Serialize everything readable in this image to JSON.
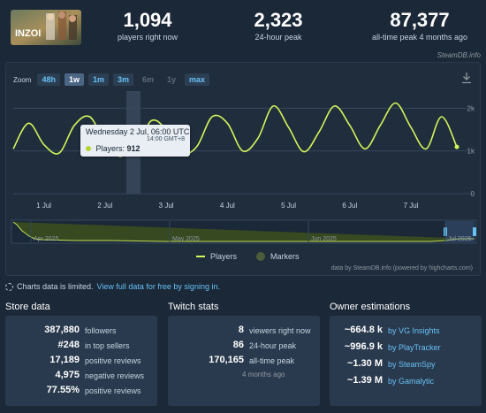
{
  "header": {
    "game_logo_text": "INZOI",
    "stats": [
      {
        "value": "1,094",
        "label": "players right now"
      },
      {
        "value": "2,323",
        "label": "24-hour peak"
      },
      {
        "value": "87,377",
        "label": "all-time peak 4 months ago"
      }
    ],
    "credit": "SteamDB.info"
  },
  "chart": {
    "zoom_label": "Zoom",
    "zoom_buttons": [
      "48h",
      "1w",
      "1m",
      "3m",
      "6m",
      "1y",
      "max"
    ],
    "active_zoom": "1w",
    "disabled_zoom": [
      "6m",
      "1y"
    ],
    "y_ticks": [
      "2k",
      "1k",
      "0"
    ],
    "x_ticks": [
      "1 Jul",
      "2 Jul",
      "3 Jul",
      "4 Jul",
      "5 Jul",
      "6 Jul",
      "7 Jul"
    ],
    "navigator_ticks": [
      "Apr 2025",
      "May 2025",
      "Jun 2025",
      "Jul 2025"
    ],
    "tooltip": {
      "title": "Wednesday 2 Jul, 06:00 UTC",
      "subtitle": "14:00 GMT+8",
      "series_label": "Players:",
      "series_value": "912"
    },
    "legend": {
      "players": "Players",
      "markers": "Markers"
    },
    "data_credit": "data by SteamDB.info (powered by highcharts.com)",
    "colors": {
      "line": "#d3f55a",
      "background": "#202d3d"
    }
  },
  "chart_data": {
    "type": "line",
    "title": "",
    "xlabel": "",
    "ylabel": "",
    "ylim": [
      0,
      2400
    ],
    "x": [
      "30 Jun 12:00",
      "30 Jun 18:00",
      "1 Jul 00:00",
      "1 Jul 06:00",
      "1 Jul 12:00",
      "1 Jul 18:00",
      "2 Jul 00:00",
      "2 Jul 06:00",
      "2 Jul 12:00",
      "2 Jul 18:00",
      "3 Jul 00:00",
      "3 Jul 06:00",
      "3 Jul 12:00",
      "3 Jul 18:00",
      "4 Jul 00:00",
      "4 Jul 06:00",
      "4 Jul 12:00",
      "4 Jul 18:00",
      "5 Jul 00:00",
      "5 Jul 06:00",
      "5 Jul 12:00",
      "5 Jul 18:00",
      "6 Jul 00:00",
      "6 Jul 06:00",
      "6 Jul 12:00",
      "6 Jul 18:00",
      "7 Jul 00:00",
      "7 Jul 06:00",
      "7 Jul 12:00",
      "7 Jul 18:00"
    ],
    "series": [
      {
        "values": [
          1050,
          1650,
          1150,
          950,
          1600,
          1800,
          1200,
          912,
          1000,
          1700,
          1500,
          950,
          1100,
          1800,
          1650,
          1000,
          1300,
          2050,
          1550,
          980,
          1450,
          2050,
          1600,
          1050,
          1600,
          2120,
          1550,
          1050,
          1800,
          1094
        ]
      }
    ]
  },
  "notice": {
    "text": "Charts data is limited.",
    "link": "View full data for free by signing in."
  },
  "store_data": {
    "title": "Store data",
    "rows": [
      {
        "value": "387,880",
        "label": "followers"
      },
      {
        "value": "#248",
        "label": "in top sellers"
      },
      {
        "value": "17,189",
        "label": "positive reviews"
      },
      {
        "value": "4,975",
        "label": "negative reviews"
      },
      {
        "value": "77.55%",
        "label": "positive reviews"
      }
    ]
  },
  "twitch_stats": {
    "title": "Twitch stats",
    "rows": [
      {
        "value": "8",
        "label": "viewers right now"
      },
      {
        "value": "86",
        "label": "24-hour peak"
      },
      {
        "value": "170,165",
        "label": "all-time peak"
      }
    ],
    "subtext": "4 months ago"
  },
  "owner_estimations": {
    "title": "Owner estimations",
    "rows": [
      {
        "value": "~664.8 k",
        "label": "by VG Insights"
      },
      {
        "value": "~996.9 k",
        "label": "by PlayTracker"
      },
      {
        "value": "~1.30 M",
        "label": "by SteamSpy"
      },
      {
        "value": "~1.39 M",
        "label": "by Gamalytic"
      }
    ]
  }
}
